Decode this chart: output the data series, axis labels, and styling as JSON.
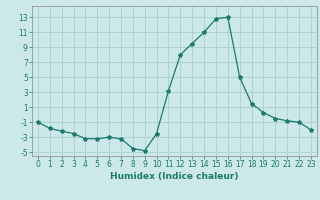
{
  "x": [
    0,
    1,
    2,
    3,
    4,
    5,
    6,
    7,
    8,
    9,
    10,
    11,
    12,
    13,
    14,
    15,
    16,
    17,
    18,
    19,
    20,
    21,
    22,
    23
  ],
  "y": [
    -1.0,
    -1.8,
    -2.2,
    -2.5,
    -3.2,
    -3.2,
    -3.0,
    -3.2,
    -4.5,
    -4.8,
    -2.5,
    3.2,
    8.0,
    9.5,
    11.0,
    12.8,
    13.0,
    5.0,
    1.5,
    0.3,
    -0.5,
    -0.8,
    -1.0,
    -2.0
  ],
  "line_color": "#1a7a6e",
  "marker": "*",
  "marker_size": 3,
  "bg_color": "#cde8e8",
  "grid_color": "#aacece",
  "xlim": [
    -0.5,
    23.5
  ],
  "ylim": [
    -5.5,
    14.5
  ],
  "yticks": [
    -5,
    -3,
    -1,
    1,
    3,
    5,
    7,
    9,
    11,
    13
  ],
  "xticks": [
    0,
    1,
    2,
    3,
    4,
    5,
    6,
    7,
    8,
    9,
    10,
    11,
    12,
    13,
    14,
    15,
    16,
    17,
    18,
    19,
    20,
    21,
    22,
    23
  ],
  "xlabel": "Humidex (Indice chaleur)",
  "tick_fontsize": 5.5,
  "label_fontsize": 6.5,
  "tick_color": "#1a7a6e",
  "axis_color": "#888888"
}
